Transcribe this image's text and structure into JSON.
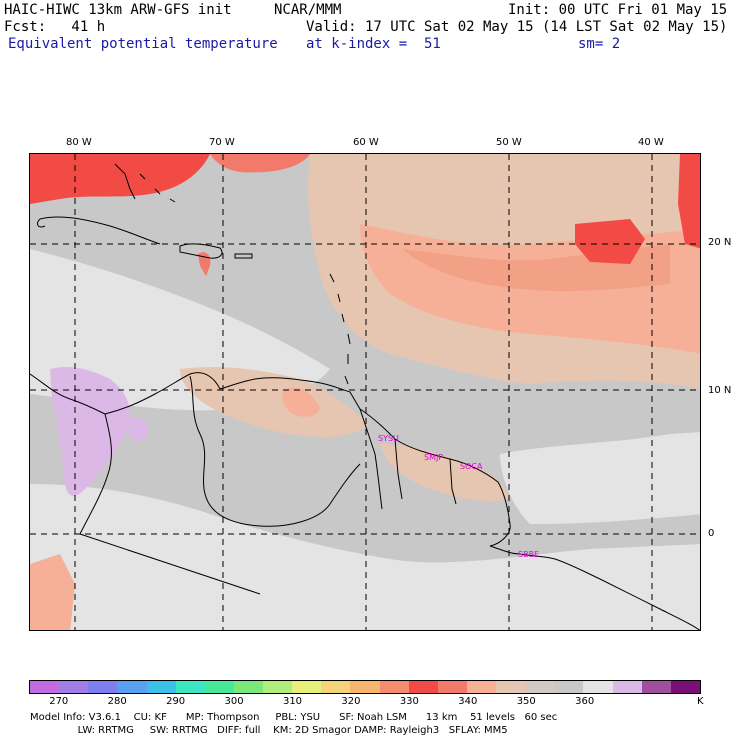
{
  "header": {
    "title_left": "HAIC-HIWC 13km ARW-GFS init",
    "title_org": "NCAR/MMM",
    "init": "Init: 00 UTC Fri 01 May 15",
    "fcst": "Fcst:   41 h",
    "valid": "Valid: 17 UTC Sat 02 May 15 (14 LST Sat 02 May 15)",
    "field": "Equivalent potential temperature",
    "level": "at k-index =  51",
    "smooth": "sm= 2"
  },
  "map": {
    "lon_labels": [
      "80 W",
      "70 W",
      "60 W",
      "50 W",
      "40 W"
    ],
    "lat_labels": [
      "20 N",
      "10 N",
      "0"
    ],
    "stations": [
      "SYSU",
      "SMJP",
      "SOCA",
      "SBBE"
    ],
    "field_colors": {
      "very_light": "#e4e4e4",
      "light_gray": "#c8c8c8",
      "tan": "#e6c6b0",
      "salmon": "#f5b097",
      "orange_red": "#f27a6a",
      "red": "#f24b45",
      "lavender": "#dcb8e6"
    }
  },
  "colorbar": {
    "colors": [
      "#c36be0",
      "#a17ee6",
      "#7f7ef0",
      "#5aa0f0",
      "#3dc0e8",
      "#3ce6c0",
      "#48e89a",
      "#7ae87a",
      "#b0f07a",
      "#e6f07a",
      "#f6d27a",
      "#f6b46e",
      "#f58c6e",
      "#f24b45",
      "#f27a6a",
      "#f5b097",
      "#e6c6b0",
      "#d2c8c4",
      "#c8c8c8",
      "#e4e4e4",
      "#dcb8e6",
      "#a04fa0",
      "#7a0f78"
    ],
    "tick_labels": [
      "270",
      "280",
      "290",
      "300",
      "310",
      "320",
      "330",
      "340",
      "350",
      "360"
    ],
    "unit": "K"
  },
  "footer": {
    "line1": "Model Info: V3.6.1    CU: KF      MP: Thompson     PBL: YSU      SF: Noah LSM      13 km    51 levels   60 sec",
    "line2": "               LW: RRTMG     SW: RRTMG   DIFF: full    KM: 2D Smagor DAMP: Rayleigh3   SFLAY: MM5"
  }
}
